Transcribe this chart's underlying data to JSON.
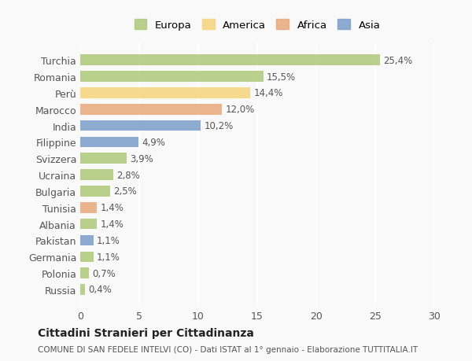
{
  "countries": [
    "Turchia",
    "Romania",
    "Perù",
    "Marocco",
    "India",
    "Filippine",
    "Svizzera",
    "Ucraina",
    "Bulgaria",
    "Tunisia",
    "Albania",
    "Pakistan",
    "Germania",
    "Polonia",
    "Russia"
  ],
  "values": [
    25.4,
    15.5,
    14.4,
    12.0,
    10.2,
    4.9,
    3.9,
    2.8,
    2.5,
    1.4,
    1.4,
    1.1,
    1.1,
    0.7,
    0.4
  ],
  "labels": [
    "25,4%",
    "15,5%",
    "14,4%",
    "12,0%",
    "10,2%",
    "4,9%",
    "3,9%",
    "2,8%",
    "2,5%",
    "1,4%",
    "1,4%",
    "1,1%",
    "1,1%",
    "0,7%",
    "0,4%"
  ],
  "continents": [
    "Europa",
    "Europa",
    "America",
    "Africa",
    "Asia",
    "Asia",
    "Europa",
    "Europa",
    "Europa",
    "Africa",
    "Europa",
    "Asia",
    "Europa",
    "Europa",
    "Europa"
  ],
  "continent_colors": {
    "Europa": "#aec97a",
    "America": "#f5d47a",
    "Africa": "#e8a87a",
    "Asia": "#7a9ec9"
  },
  "legend_order": [
    "Europa",
    "America",
    "Africa",
    "Asia"
  ],
  "legend_colors": [
    "#aec97a",
    "#f5d47a",
    "#e8a87a",
    "#7a9ec9"
  ],
  "xlim": [
    0,
    30
  ],
  "xticks": [
    0,
    5,
    10,
    15,
    20,
    25,
    30
  ],
  "title": "Cittadini Stranieri per Cittadinanza",
  "subtitle": "COMUNE DI SAN FEDELE INTELVI (CO) - Dati ISTAT al 1° gennaio - Elaborazione TUTTITALIA.IT",
  "bg_color": "#f9f9f9",
  "bar_bg_color": "#f0f0f0",
  "grid_color": "#ffffff",
  "label_fontsize": 8.5,
  "tick_fontsize": 9
}
